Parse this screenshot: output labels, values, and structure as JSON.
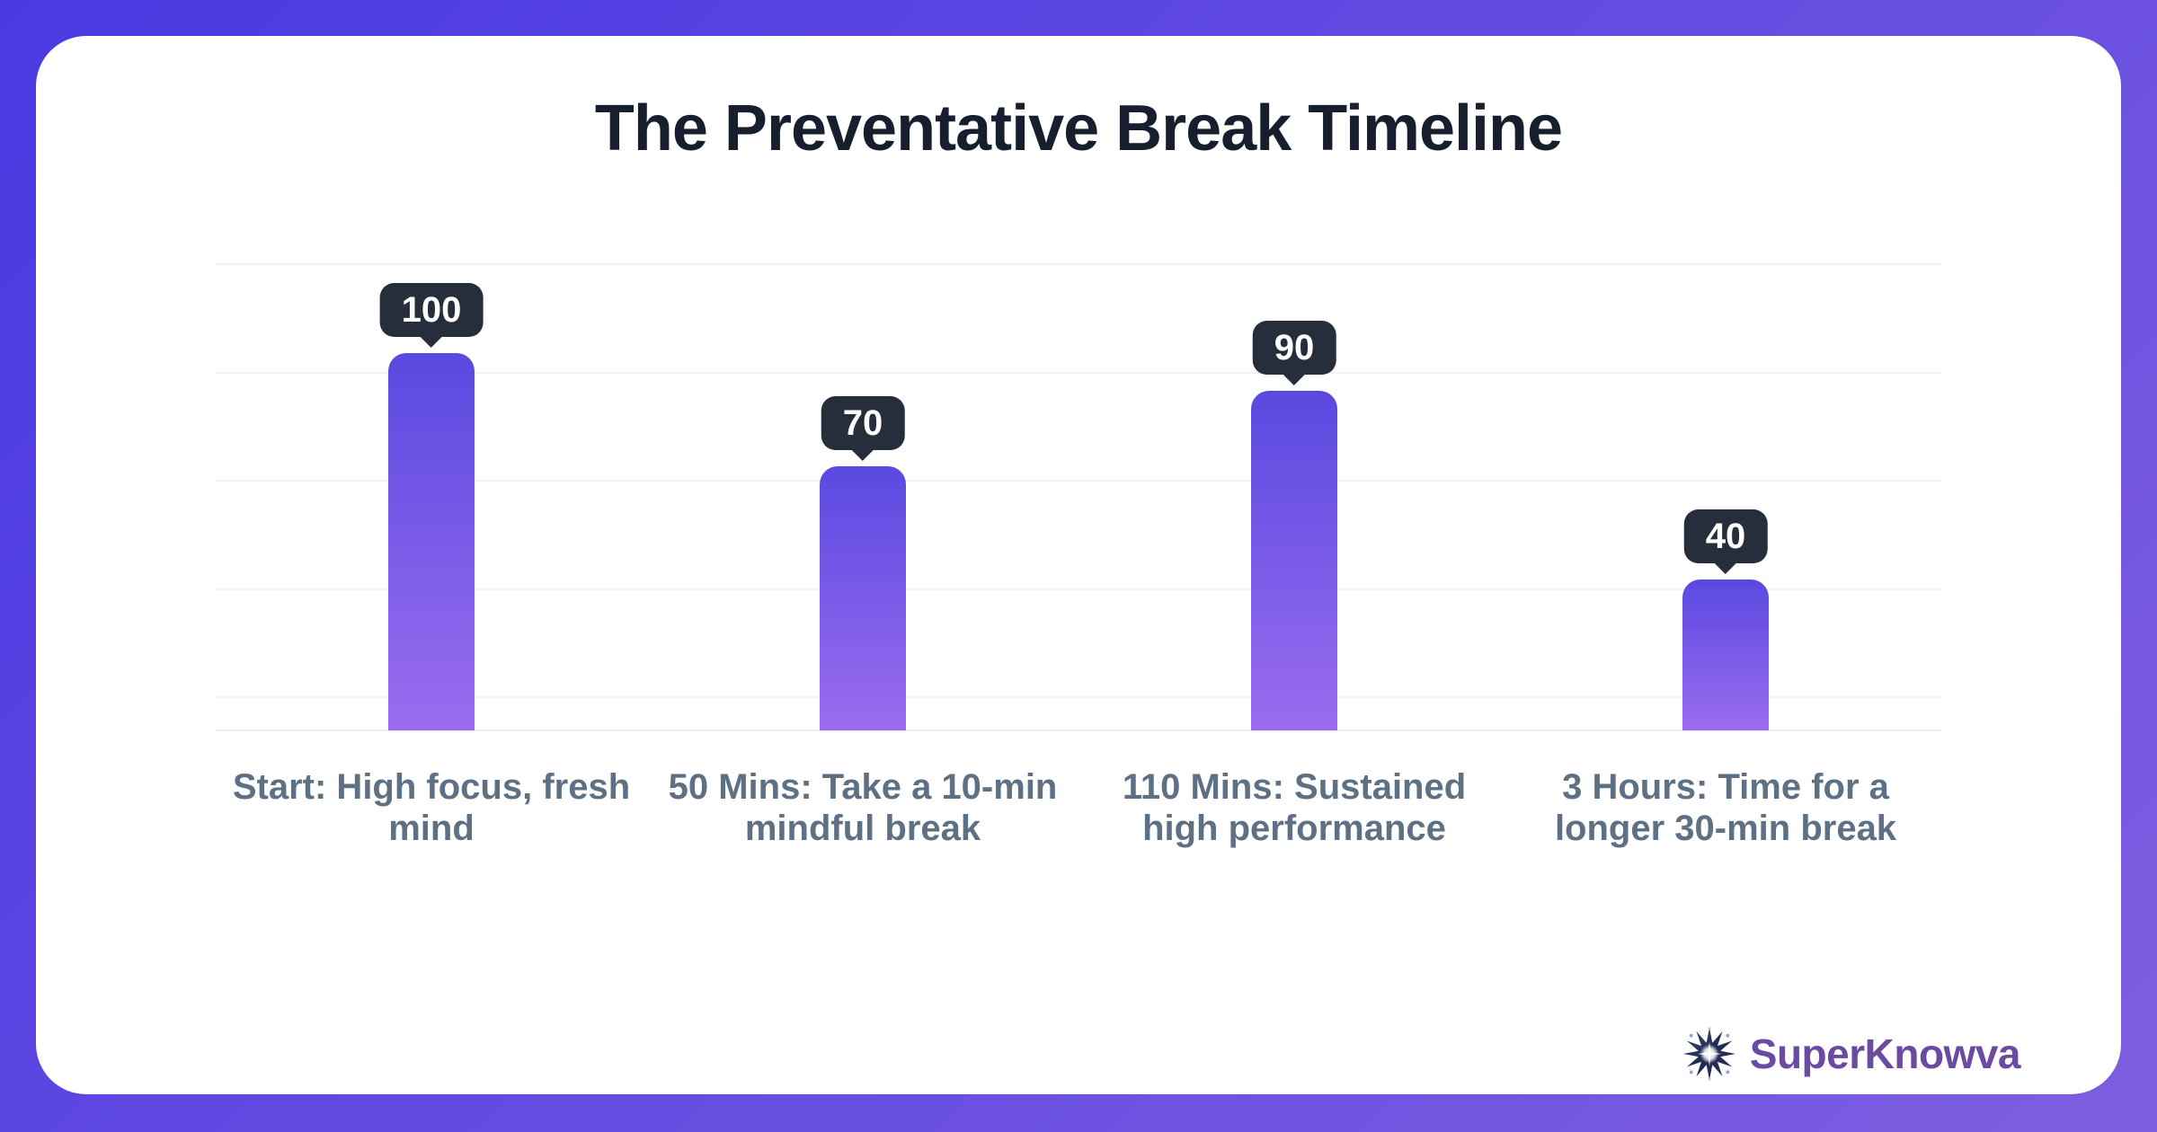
{
  "page": {
    "title": "The Preventative Break Timeline"
  },
  "chart_data": {
    "type": "bar",
    "title": "The Preventative Break Timeline",
    "categories": [
      "Start: High focus, fresh mind",
      "50 Mins: Take a 10-min mindful break",
      "110 Mins: Sustained high performance",
      "3 Hours: Time for a longer 30-min break"
    ],
    "values": [
      100,
      70,
      90,
      40
    ],
    "value_labels": [
      "100",
      "70",
      "90",
      "40"
    ],
    "xlabel": "",
    "ylabel": "",
    "ylim": [
      0,
      124
    ],
    "grid": true,
    "legend": "none",
    "data_label_style": "dark tooltip bubble above each bar"
  },
  "branding": {
    "name": "SuperKnowva",
    "icon": "starburst-icon"
  },
  "colors": {
    "bg1": "#4a39e2",
    "bg2": "#7e5ee0",
    "card": "#ffffff",
    "title": "#171e2e",
    "label": "#5e7083",
    "grid": "#f0f2f5",
    "gridStrong": "#e8ebf0",
    "barTop": "#5a49e0",
    "barBottom": "#9a6cf0",
    "tooltipBg": "#272e3b",
    "tooltipText": "#ffffff",
    "brand": "#6a4ba1"
  }
}
